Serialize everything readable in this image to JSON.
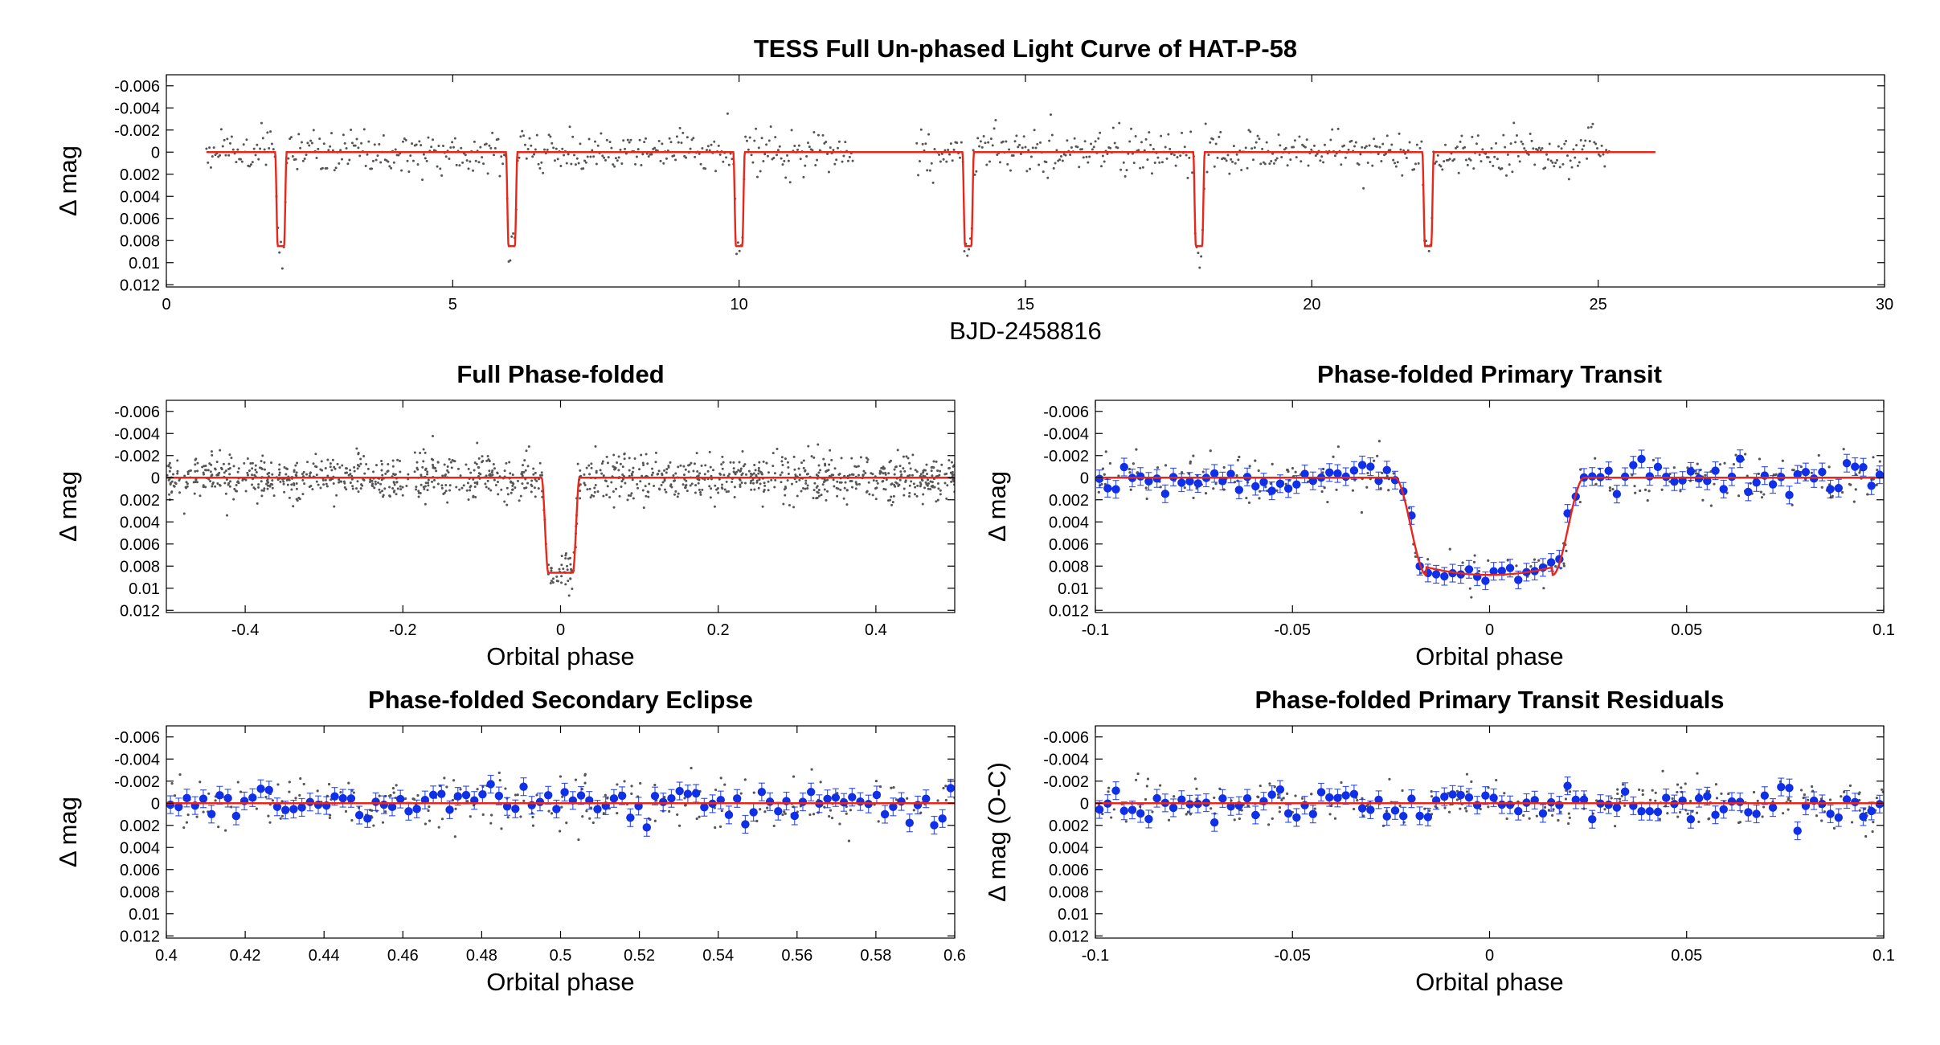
{
  "chart_data": [
    {
      "id": "full-lc",
      "type": "scatter",
      "title": "TESS Full Un-phased Light Curve of HAT-P-58",
      "xlabel": "BJD-2458816",
      "ylabel": "Δ mag",
      "xlim": [
        0,
        30
      ],
      "ylim": [
        -0.007,
        0.0122
      ],
      "y_inverted": true,
      "xticks": [
        0,
        5,
        10,
        15,
        20,
        25,
        30
      ],
      "xticklabels": [
        "0",
        "5",
        "10",
        "15",
        "20",
        "25",
        "30"
      ],
      "yticks": [
        -0.006,
        -0.004,
        -0.002,
        0,
        0.002,
        0.004,
        0.006,
        0.008,
        0.01,
        0.012
      ],
      "yticklabels": [
        "-0.006",
        "-0.004",
        "-0.002",
        "0",
        "0.002",
        "0.004",
        "0.006",
        "0.008",
        "0.01",
        "0.012"
      ],
      "data_series": {
        "name": "",
        "color": "#555555",
        "x_range": [
          0.7,
          25.2
        ],
        "gap": [
          12.0,
          13.1
        ],
        "scatter_sd": 0.001
      },
      "model": {
        "color": "#e8261a",
        "x_end": 26.0,
        "depth": 0.0085,
        "transit_centers": [
          2.0,
          6.03,
          10.0,
          14.0,
          18.03,
          22.03
        ],
        "transit_width_days": 0.2
      }
    },
    {
      "id": "full-phase",
      "type": "scatter",
      "title": "Full Phase-folded",
      "xlabel": "Orbital phase",
      "ylabel": "Δ mag",
      "xlim": [
        -0.5,
        0.5
      ],
      "ylim": [
        -0.007,
        0.0122
      ],
      "y_inverted": true,
      "xticks": [
        -0.4,
        -0.2,
        0,
        0.2,
        0.4
      ],
      "xticklabels": [
        "-0.4",
        "-0.2",
        "0",
        "0.2",
        "0.4"
      ],
      "yticks": [
        -0.006,
        -0.004,
        -0.002,
        0,
        0.002,
        0.004,
        0.006,
        0.008,
        0.01,
        0.012
      ],
      "yticklabels": [
        "-0.006",
        "-0.004",
        "-0.002",
        "0",
        "0.002",
        "0.004",
        "0.006",
        "0.008",
        "0.01",
        "0.012"
      ],
      "data_series": {
        "name": "",
        "color": "#555555",
        "scatter_sd": 0.001
      },
      "model": {
        "color": "#e8261a",
        "depth": 0.0086,
        "half_width_phase": 0.024
      }
    },
    {
      "id": "primary",
      "type": "scatter",
      "title": "Phase-folded Primary Transit",
      "xlabel": "Orbital phase",
      "ylabel": "Δ mag",
      "xlim": [
        -0.1,
        0.1
      ],
      "ylim": [
        -0.007,
        0.0122
      ],
      "y_inverted": true,
      "xticks": [
        -0.1,
        -0.05,
        0,
        0.05,
        0.1
      ],
      "xticklabels": [
        "-0.1",
        "-0.05",
        "0",
        "0.05",
        "0.1"
      ],
      "yticks": [
        -0.006,
        -0.004,
        -0.002,
        0,
        0.002,
        0.004,
        0.006,
        0.008,
        0.01,
        0.012
      ],
      "yticklabels": [
        "-0.006",
        "-0.004",
        "-0.002",
        "0",
        "0.002",
        "0.004",
        "0.006",
        "0.008",
        "0.01",
        "0.012"
      ],
      "binned_series": {
        "name": "",
        "color": "#1030e8",
        "n_bins": 96,
        "scatter_sd": 0.0007,
        "error_bar": 0.0008
      },
      "raw_series": {
        "name": "",
        "color": "#555555",
        "scatter_sd": 0.0011
      },
      "model": {
        "color": "#e8261a",
        "depth": 0.0088,
        "ingress_start": -0.024,
        "ingress_end": -0.016,
        "egress_start": 0.016,
        "egress_end": 0.024
      }
    },
    {
      "id": "secondary",
      "type": "scatter",
      "title": "Phase-folded Secondary Eclipse",
      "xlabel": "Orbital phase",
      "ylabel": "Δ mag",
      "xlim": [
        0.4,
        0.6
      ],
      "ylim": [
        -0.007,
        0.0122
      ],
      "y_inverted": true,
      "xticks": [
        0.4,
        0.42,
        0.44,
        0.46,
        0.48,
        0.5,
        0.52,
        0.54,
        0.56,
        0.58,
        0.6
      ],
      "xticklabels": [
        "0.4",
        "0.42",
        "0.44",
        "0.46",
        "0.48",
        "0.5",
        "0.52",
        "0.54",
        "0.56",
        "0.58",
        "0.6"
      ],
      "yticks": [
        -0.006,
        -0.004,
        -0.002,
        0,
        0.002,
        0.004,
        0.006,
        0.008,
        0.01,
        0.012
      ],
      "yticklabels": [
        "-0.006",
        "-0.004",
        "-0.002",
        "0",
        "0.002",
        "0.004",
        "0.006",
        "0.008",
        "0.01",
        "0.012"
      ],
      "binned_series": {
        "name": "",
        "color": "#1030e8",
        "n_bins": 96,
        "scatter_sd": 0.0008,
        "error_bar": 0.0008
      },
      "raw_series": {
        "name": "",
        "color": "#555555",
        "scatter_sd": 0.0012
      },
      "model": {
        "color": "#e8261a",
        "depth": 0.0
      }
    },
    {
      "id": "residuals",
      "type": "scatter",
      "title": "Phase-folded Primary Transit Residuals",
      "xlabel": "Orbital phase",
      "ylabel": "Δ mag (O-C)",
      "xlim": [
        -0.1,
        0.1
      ],
      "ylim": [
        -0.007,
        0.0122
      ],
      "y_inverted": true,
      "xticks": [
        -0.1,
        -0.05,
        0,
        0.05,
        0.1
      ],
      "xticklabels": [
        "-0.1",
        "-0.05",
        "0",
        "0.05",
        "0.1"
      ],
      "yticks": [
        -0.006,
        -0.004,
        -0.002,
        0,
        0.002,
        0.004,
        0.006,
        0.008,
        0.01,
        0.012
      ],
      "yticklabels": [
        "-0.006",
        "-0.004",
        "-0.002",
        "0",
        "0.002",
        "0.004",
        "0.006",
        "0.008",
        "0.01",
        "0.012"
      ],
      "binned_series": {
        "name": "",
        "color": "#1030e8",
        "n_bins": 96,
        "scatter_sd": 0.0007,
        "error_bar": 0.0008
      },
      "raw_series": {
        "name": "",
        "color": "#555555",
        "scatter_sd": 0.0011
      },
      "model": {
        "color": "#e8261a",
        "depth": 0.0
      }
    }
  ]
}
